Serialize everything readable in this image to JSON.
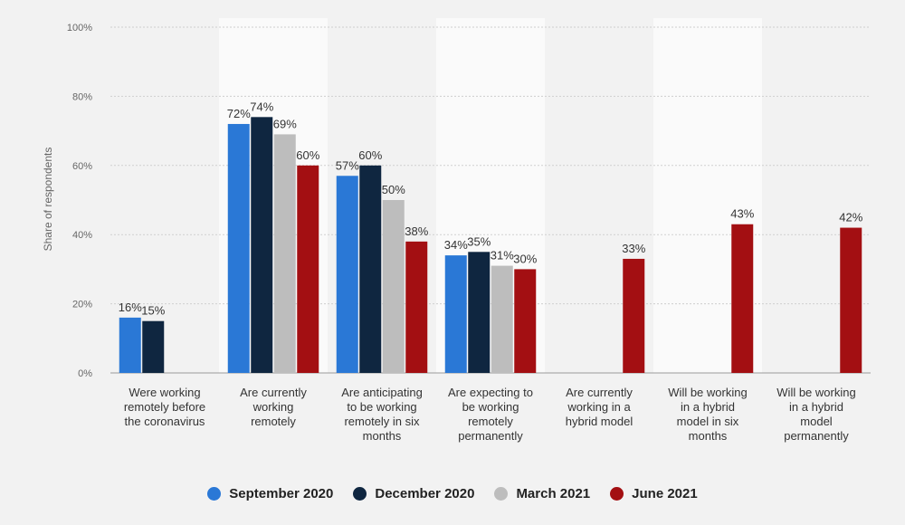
{
  "chart_data": {
    "type": "bar",
    "ylabel": "Share of respondents",
    "ylim": [
      0,
      100
    ],
    "yticks": [
      "0%",
      "20%",
      "40%",
      "60%",
      "80%",
      "100%"
    ],
    "grid": true,
    "legend_position": "bottom",
    "categories": [
      [
        "Were working",
        "remotely before",
        "the coronavirus"
      ],
      [
        "Are currently",
        "working",
        "remotely"
      ],
      [
        "Are anticipating",
        "to be working",
        "remotely in six",
        "months"
      ],
      [
        "Are expecting to",
        "be working",
        "remotely",
        "permanently"
      ],
      [
        "Are currently",
        "working in a",
        "hybrid model"
      ],
      [
        "Will be working",
        "in a hybrid",
        "model in six",
        "months"
      ],
      [
        "Will be working",
        "in a hybrid",
        "model",
        "permanently"
      ]
    ],
    "series": [
      {
        "name": "September 2020",
        "color": "#2a78d6",
        "values": [
          16,
          72,
          57,
          34,
          null,
          null,
          null
        ]
      },
      {
        "name": "December 2020",
        "color": "#0f2640",
        "values": [
          15,
          74,
          60,
          35,
          null,
          null,
          null
        ]
      },
      {
        "name": "March 2021",
        "color": "#bdbdbd",
        "values": [
          null,
          69,
          50,
          31,
          null,
          null,
          null
        ]
      },
      {
        "name": "June 2021",
        "color": "#a30f12",
        "values": [
          null,
          60,
          38,
          30,
          33,
          43,
          42
        ]
      }
    ]
  }
}
